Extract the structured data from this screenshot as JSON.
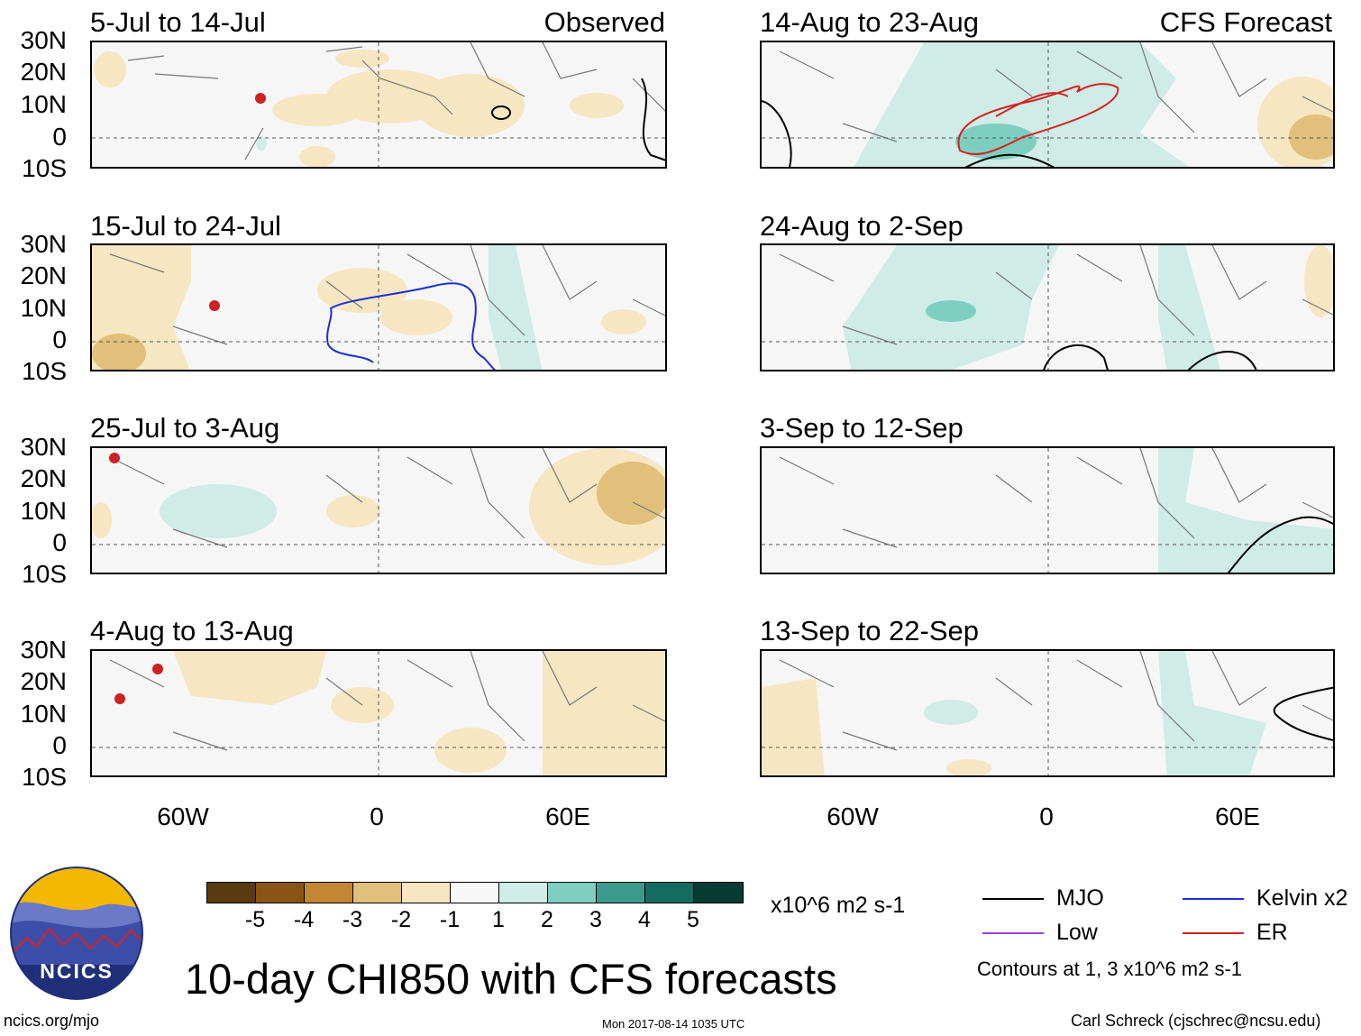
{
  "header": {
    "left_tag": "Observed",
    "right_tag": "CFS Forecast"
  },
  "panels_left": [
    {
      "title": "5-Jul to 14-Jul"
    },
    {
      "title": "15-Jul to 24-Jul"
    },
    {
      "title": "25-Jul to 3-Aug"
    },
    {
      "title": "4-Aug to 13-Aug"
    }
  ],
  "panels_right": [
    {
      "title": "14-Aug to 23-Aug"
    },
    {
      "title": "24-Aug to 2-Sep"
    },
    {
      "title": "3-Sep to 12-Sep"
    },
    {
      "title": "13-Sep to 22-Sep"
    }
  ],
  "axes": {
    "lat_labels": [
      "30N",
      "20N",
      "10N",
      "0",
      "10S"
    ],
    "lon_labels": [
      "60W",
      "0",
      "60E"
    ]
  },
  "colorbar": {
    "colors": [
      "#5a3a0f",
      "#8a5412",
      "#c38632",
      "#e0c07a",
      "#f6e6c2",
      "#f7f7f7",
      "#cfece6",
      "#7fcfc0",
      "#3a9b8c",
      "#126c60",
      "#063b32"
    ],
    "labels": [
      "-5",
      "-4",
      "-3",
      "-2",
      "-1",
      "1",
      "2",
      "3",
      "4",
      "5"
    ],
    "units": "x10^6 m2 s-1"
  },
  "title": "10-day CHI850 with CFS forecasts",
  "legend": {
    "items": [
      {
        "label": "MJO",
        "color": "#000000"
      },
      {
        "label": "Kelvin x2",
        "color": "#1c2fd6"
      },
      {
        "label": "Low",
        "color": "#9a3fe0"
      },
      {
        "label": "ER",
        "color": "#d62222"
      }
    ],
    "note": "Contours at 1, 3 x10^6 m2 s-1"
  },
  "logo": {
    "text": "NCICS"
  },
  "footer": {
    "left": "ncics.org/mjo",
    "center": "Mon 2017-08-14 1035 UTC",
    "right": "Carl Schreck (cjschrec@ncsu.edu)"
  }
}
